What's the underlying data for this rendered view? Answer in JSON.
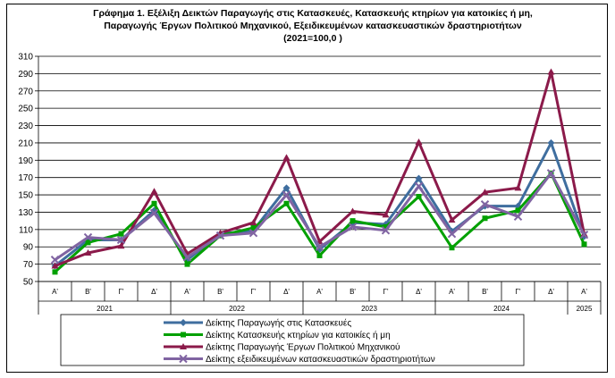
{
  "chart_data": {
    "type": "line",
    "title": [
      "Γράφημα 1. Εξέλιξη  Δεικτών Παραγωγής στις Κατασκευές,  Κατασκευής κτηρίων για κατοικίες ή  μη,",
      "Παραγωγής Έργων Πολιτικού Μηχανικού,  Εξειδικευμένων κατασκευαστικών δραστηριοτήτων",
      "(2021=100,0 )"
    ],
    "quarters": [
      "Α'",
      "Β'",
      "Γ'",
      "Δ'",
      "Α'",
      "Β'",
      "Γ'",
      "Δ'",
      "Α'",
      "Β'",
      "Γ'",
      "Δ'",
      "Α'",
      "Β'",
      "Γ'",
      "Δ'",
      "Α'"
    ],
    "years": [
      {
        "label": "2021",
        "quarters": 4
      },
      {
        "label": "2022",
        "quarters": 4
      },
      {
        "label": "2023",
        "quarters": 4
      },
      {
        "label": "2024",
        "quarters": 4
      },
      {
        "label": "2025",
        "quarters": 1
      }
    ],
    "ylim": [
      50,
      310
    ],
    "yticks": [
      50,
      70,
      90,
      110,
      130,
      150,
      170,
      190,
      210,
      230,
      250,
      270,
      290,
      310
    ],
    "grid": "horizontal",
    "legend_position": "bottom",
    "series": [
      {
        "name": "Δείκτης Παραγωγής στις Κατασκευές",
        "color": "#3f6e9f",
        "marker": "diamond",
        "values": [
          68,
          98,
          98,
          132,
          75,
          105,
          109,
          158,
          87,
          118,
          116,
          169,
          108,
          137,
          137,
          210,
          102
        ]
      },
      {
        "name": "Δείκτης Κατασκευής κτηρίων για κατοικίες ή μη",
        "color": "#00a000",
        "marker": "square",
        "values": [
          61,
          95,
          105,
          140,
          70,
          103,
          112,
          140,
          80,
          120,
          113,
          148,
          89,
          123,
          132,
          175,
          93
        ]
      },
      {
        "name": "Δείκτης Παραγωγής Έργων Πολιτικού Μηχανικού",
        "color": "#8b1a4a",
        "marker": "triangle",
        "values": [
          68,
          83,
          91,
          154,
          82,
          106,
          118,
          193,
          96,
          131,
          127,
          211,
          121,
          153,
          158,
          292,
          105
        ]
      },
      {
        "name": "Δείκτης εξειδικευμένων κατασκευαστικών δραστηριοτήτων",
        "color": "#8064a2",
        "marker": "x",
        "values": [
          75,
          101,
          98,
          129,
          78,
          103,
          106,
          150,
          90,
          113,
          109,
          160,
          105,
          139,
          125,
          175,
          104
        ]
      }
    ]
  }
}
